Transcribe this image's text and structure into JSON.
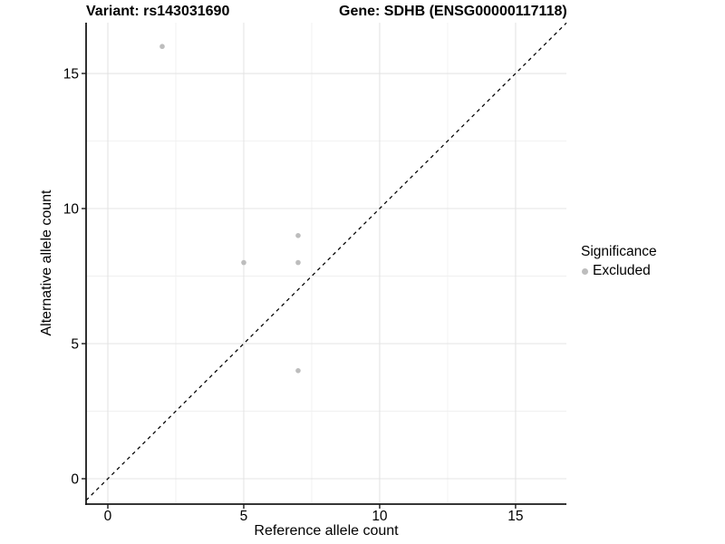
{
  "chart_data": {
    "type": "scatter",
    "title_left": "Variant: rs143031690",
    "title_right": "Gene: SDHB (ENSG00000117118)",
    "xlabel": "Reference allele count",
    "ylabel": "Alternative allele count",
    "xlim": [
      -0.8,
      16.87
    ],
    "ylim": [
      -0.94,
      16.88
    ],
    "xticks": [
      0,
      5,
      10,
      15
    ],
    "yticks": [
      0,
      5,
      10,
      15
    ],
    "xminor": [
      2.5,
      7.5,
      12.5
    ],
    "yminor": [
      2.5,
      7.5,
      12.5
    ],
    "grid": true,
    "background": "#ffffff",
    "major_grid_color": "#e4e4e4",
    "minor_grid_color": "#f0f0f0",
    "axis_color": "#1a1a1a",
    "reference_line": {
      "type": "identity",
      "slope": 1,
      "intercept": 0,
      "style": "dashed",
      "color": "#000000"
    },
    "series": [
      {
        "name": "Excluded",
        "color": "#bdbdbd",
        "points": [
          [
            2,
            16
          ],
          [
            5,
            8
          ],
          [
            7,
            9
          ],
          [
            7,
            8
          ],
          [
            7,
            4
          ]
        ]
      }
    ],
    "legend": {
      "title": "Significance",
      "position": "right",
      "items": [
        {
          "label": "Excluded",
          "color": "#bdbdbd"
        }
      ]
    }
  }
}
